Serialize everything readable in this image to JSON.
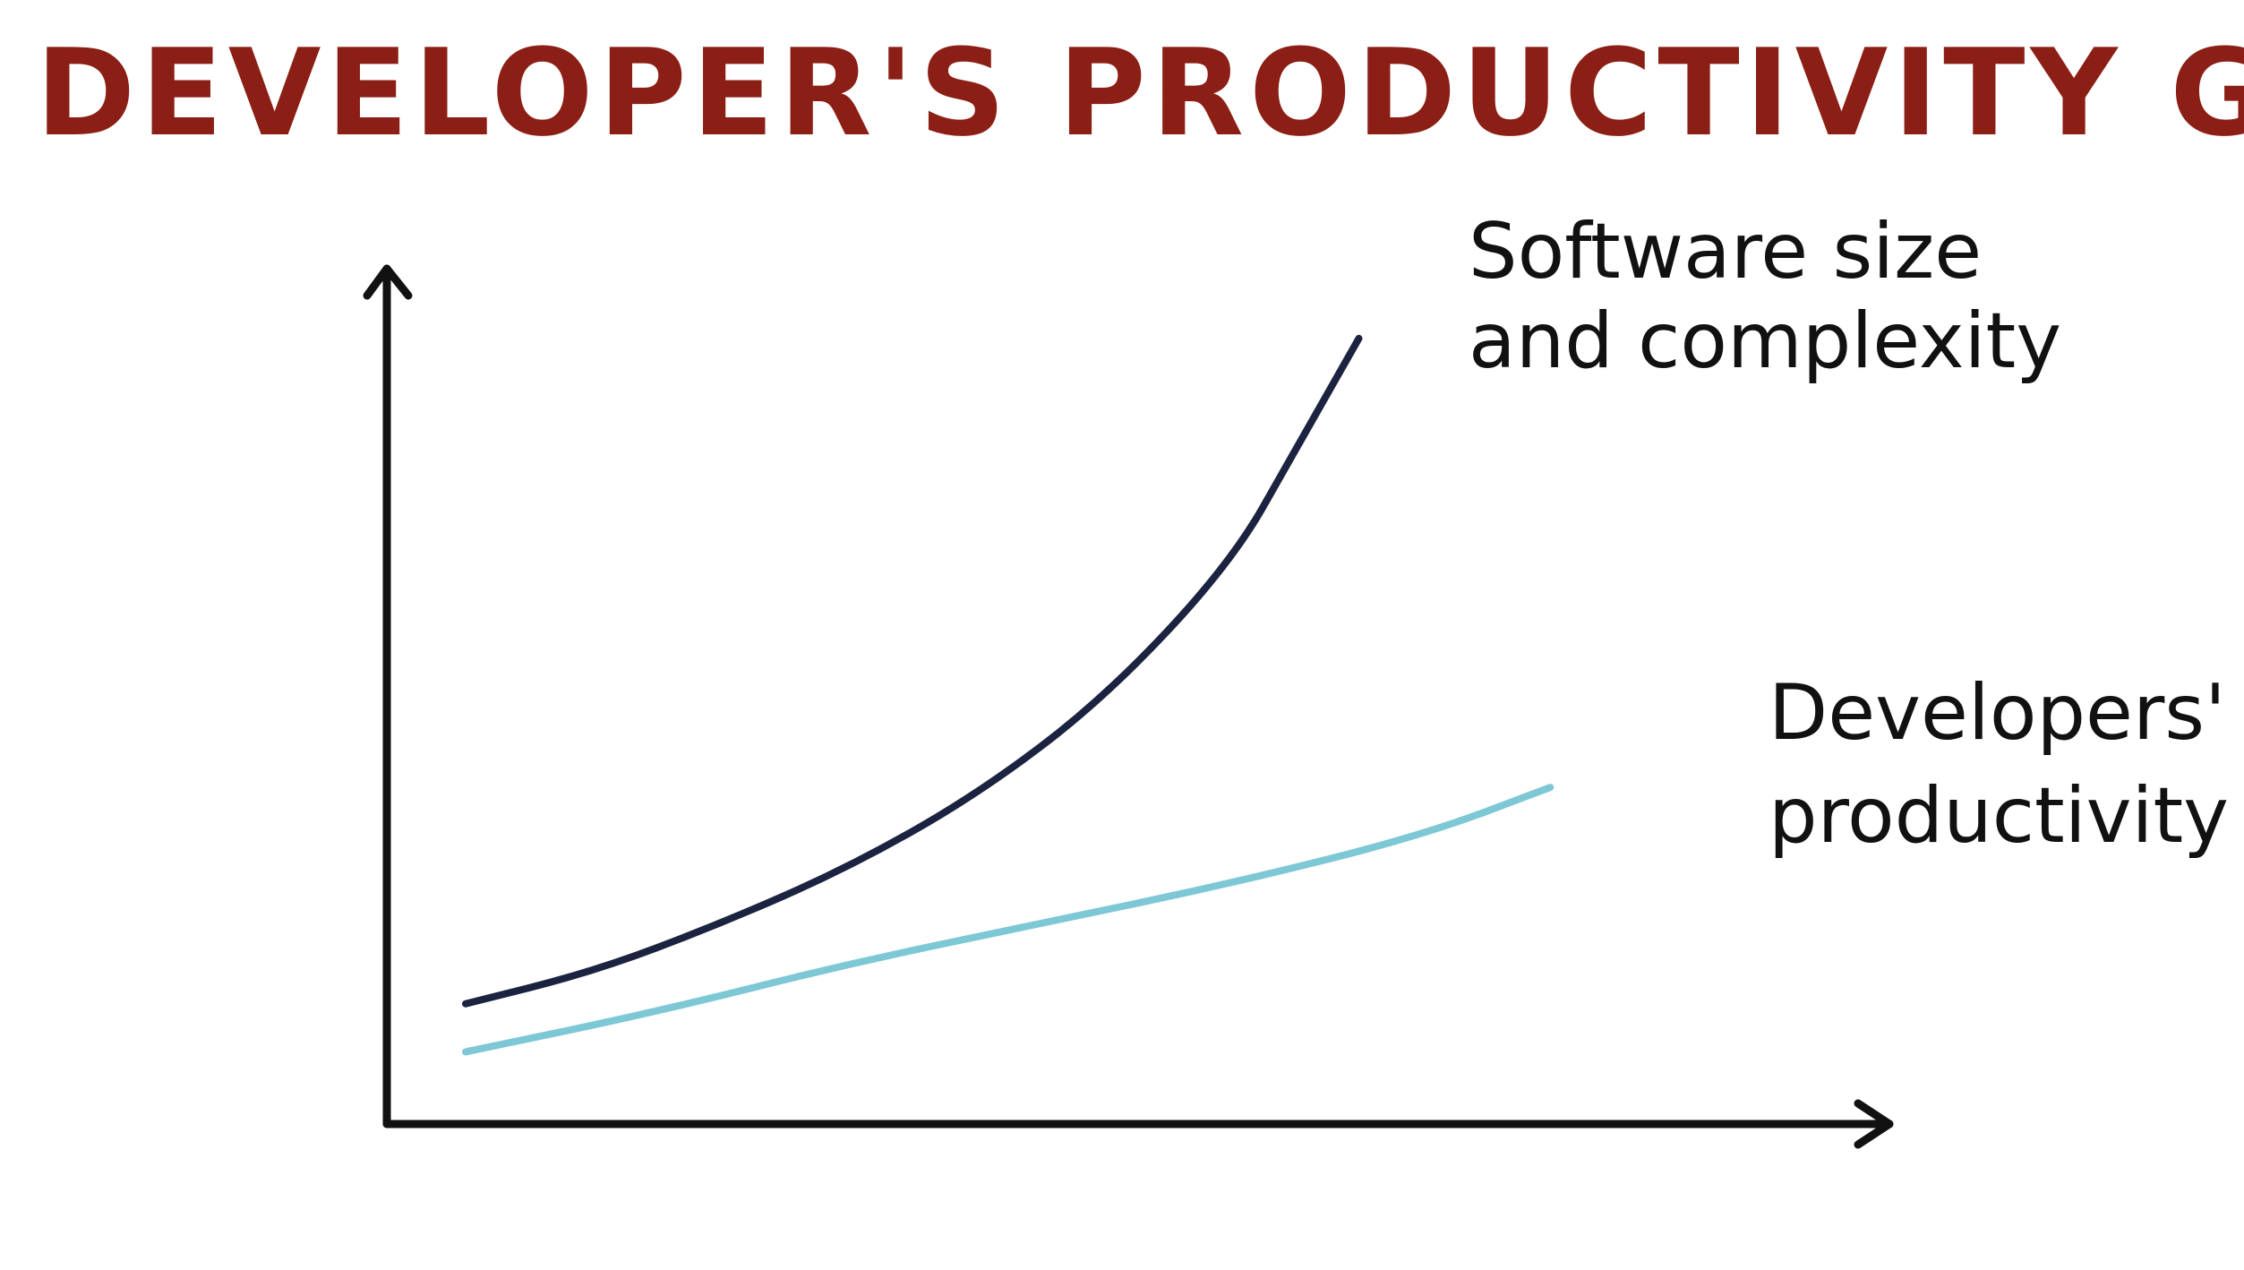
{
  "chart_data": {
    "type": "line",
    "title": "DEVELOPER'S PRODUCTIVITY GROWTH",
    "xlabel": "",
    "ylabel": "",
    "grid": false,
    "xlim": [
      0,
      100
    ],
    "ylim": [
      0,
      100
    ],
    "series": [
      {
        "name": "Software size and complexity",
        "label_lines": [
          "Software size",
          "and complexity"
        ],
        "color": "#1b2340",
        "x": [
          0,
          10,
          20,
          30,
          40,
          50,
          60,
          65,
          70
        ],
        "y": [
          15,
          19,
          25,
          32,
          41,
          53,
          70,
          84,
          98
        ]
      },
      {
        "name": "Developers' productivity",
        "label_lines": [
          "Developers'",
          "productivity"
        ],
        "color": "#7ec8d6",
        "x": [
          0,
          15,
          30,
          45,
          60,
          75,
          85
        ],
        "y": [
          9,
          14,
          20,
          25,
          30,
          36,
          42
        ]
      }
    ],
    "colors": {
      "title": "#8b1f15",
      "axes": "#111111",
      "label": "#111111"
    }
  }
}
